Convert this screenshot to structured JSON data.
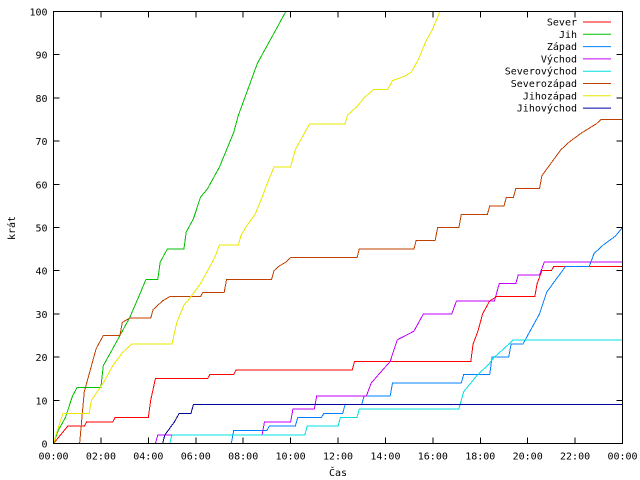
{
  "chart_data": {
    "type": "line",
    "xlabel": "Čas",
    "ylabel": "krát",
    "x_unit": "hours",
    "xlim": [
      0,
      24
    ],
    "ylim": [
      0,
      100
    ],
    "x_tick_values": [
      0,
      2,
      4,
      6,
      8,
      10,
      12,
      14,
      16,
      18,
      20,
      22,
      24
    ],
    "x_tick_labels": [
      "00:00",
      "02:00",
      "04:00",
      "06:00",
      "08:00",
      "10:00",
      "12:00",
      "14:00",
      "16:00",
      "18:00",
      "20:00",
      "22:00",
      "00:00"
    ],
    "y_ticks": [
      0,
      10,
      20,
      30,
      40,
      50,
      60,
      70,
      80,
      90,
      100
    ],
    "grid": false,
    "legend_position": "top-right",
    "series": [
      {
        "name": "Sever",
        "color": "#ff0000",
        "points": [
          [
            0,
            0
          ],
          [
            0.3,
            2
          ],
          [
            0.6,
            4
          ],
          [
            1.3,
            4
          ],
          [
            1.4,
            5
          ],
          [
            2.5,
            5
          ],
          [
            2.6,
            6
          ],
          [
            4,
            6
          ],
          [
            4.1,
            10
          ],
          [
            4.3,
            15
          ],
          [
            6.5,
            15
          ],
          [
            6.6,
            16
          ],
          [
            7.6,
            16
          ],
          [
            7.7,
            17
          ],
          [
            12.6,
            17
          ],
          [
            12.7,
            19
          ],
          [
            17.6,
            19
          ],
          [
            17.7,
            23
          ],
          [
            17.9,
            26
          ],
          [
            18.1,
            30
          ],
          [
            18.4,
            33
          ],
          [
            18.7,
            34
          ],
          [
            20.3,
            34
          ],
          [
            20.4,
            37
          ],
          [
            20.6,
            40
          ],
          [
            21,
            40
          ],
          [
            21.1,
            41
          ],
          [
            24,
            41
          ]
        ]
      },
      {
        "name": "Jih",
        "color": "#00c000",
        "points": [
          [
            0,
            0
          ],
          [
            0.2,
            3
          ],
          [
            0.5,
            6
          ],
          [
            0.8,
            11
          ],
          [
            1,
            13
          ],
          [
            2,
            13
          ],
          [
            2.1,
            18
          ],
          [
            2.5,
            22
          ],
          [
            2.9,
            26
          ],
          [
            3.2,
            29
          ],
          [
            3.6,
            34
          ],
          [
            3.9,
            38
          ],
          [
            4.4,
            38
          ],
          [
            4.5,
            42
          ],
          [
            4.8,
            45
          ],
          [
            5.5,
            45
          ],
          [
            5.6,
            49
          ],
          [
            5.9,
            52
          ],
          [
            6.2,
            57
          ],
          [
            6.5,
            59
          ],
          [
            6.8,
            62
          ],
          [
            7,
            64
          ],
          [
            7.3,
            68
          ],
          [
            7.6,
            72
          ],
          [
            7.8,
            76
          ],
          [
            8.2,
            82
          ],
          [
            8.6,
            88
          ],
          [
            9,
            92
          ],
          [
            9.4,
            96
          ],
          [
            9.8,
            100
          ]
        ]
      },
      {
        "name": "Západ",
        "color": "#0080ff",
        "points": [
          [
            0,
            0
          ],
          [
            7.5,
            0
          ],
          [
            7.6,
            3
          ],
          [
            9,
            3
          ],
          [
            9.1,
            4
          ],
          [
            10.2,
            4
          ],
          [
            10.3,
            6
          ],
          [
            11.3,
            6
          ],
          [
            11.4,
            7
          ],
          [
            12.2,
            7
          ],
          [
            12.3,
            9
          ],
          [
            13,
            9
          ],
          [
            13.1,
            11
          ],
          [
            14.2,
            11
          ],
          [
            14.3,
            14
          ],
          [
            17.2,
            14
          ],
          [
            17.3,
            16
          ],
          [
            18.4,
            16
          ],
          [
            18.5,
            20
          ],
          [
            19.2,
            20
          ],
          [
            19.3,
            23
          ],
          [
            19.8,
            23
          ],
          [
            20.1,
            26
          ],
          [
            20.5,
            30
          ],
          [
            20.8,
            35
          ],
          [
            21.2,
            38
          ],
          [
            21.6,
            41
          ],
          [
            22.6,
            41
          ],
          [
            22.8,
            44
          ],
          [
            23.2,
            46
          ],
          [
            23.7,
            48
          ],
          [
            24,
            50
          ]
        ]
      },
      {
        "name": "Východ",
        "color": "#c000ff",
        "points": [
          [
            0,
            0
          ],
          [
            4.3,
            0
          ],
          [
            4.4,
            2
          ],
          [
            8.8,
            2
          ],
          [
            8.9,
            5
          ],
          [
            10,
            5
          ],
          [
            10.1,
            8
          ],
          [
            11,
            8
          ],
          [
            11.1,
            11
          ],
          [
            13.2,
            11
          ],
          [
            13.4,
            14
          ],
          [
            14.2,
            19
          ],
          [
            14.5,
            24
          ],
          [
            15.2,
            26
          ],
          [
            15.6,
            30
          ],
          [
            16.8,
            30
          ],
          [
            17,
            33
          ],
          [
            18.6,
            33
          ],
          [
            18.8,
            37
          ],
          [
            19.5,
            37
          ],
          [
            19.6,
            39
          ],
          [
            20.5,
            39
          ],
          [
            20.7,
            42
          ],
          [
            24,
            42
          ]
        ]
      },
      {
        "name": "Severovýchod",
        "color": "#00e0e0",
        "points": [
          [
            0,
            0
          ],
          [
            4.9,
            0
          ],
          [
            5,
            2
          ],
          [
            10.6,
            2
          ],
          [
            10.7,
            4
          ],
          [
            12,
            4
          ],
          [
            12.1,
            6
          ],
          [
            12.8,
            6
          ],
          [
            12.9,
            8
          ],
          [
            17.1,
            8
          ],
          [
            17.3,
            12
          ],
          [
            17.6,
            14
          ],
          [
            17.9,
            16
          ],
          [
            18.3,
            18
          ],
          [
            18.6,
            20
          ],
          [
            19,
            22
          ],
          [
            19.4,
            24
          ],
          [
            24,
            24
          ]
        ]
      },
      {
        "name": "Severozápad",
        "color": "#c04000",
        "points": [
          [
            0,
            0
          ],
          [
            1.1,
            0
          ],
          [
            1.3,
            12
          ],
          [
            1.8,
            22
          ],
          [
            2.1,
            25
          ],
          [
            2.8,
            25
          ],
          [
            2.9,
            28
          ],
          [
            3.2,
            29
          ],
          [
            4.1,
            29
          ],
          [
            4.2,
            31
          ],
          [
            4.6,
            33
          ],
          [
            4.9,
            34
          ],
          [
            6.2,
            34
          ],
          [
            6.3,
            35
          ],
          [
            7.2,
            35
          ],
          [
            7.3,
            38
          ],
          [
            9.2,
            38
          ],
          [
            9.3,
            40
          ],
          [
            9.5,
            41
          ],
          [
            9.8,
            42
          ],
          [
            10,
            43
          ],
          [
            12.8,
            43
          ],
          [
            12.9,
            45
          ],
          [
            15.2,
            45
          ],
          [
            15.3,
            47
          ],
          [
            16.1,
            47
          ],
          [
            16.2,
            50
          ],
          [
            17.1,
            50
          ],
          [
            17.2,
            53
          ],
          [
            18.3,
            53
          ],
          [
            18.4,
            55
          ],
          [
            19,
            55
          ],
          [
            19.1,
            57
          ],
          [
            19.4,
            57
          ],
          [
            19.5,
            59
          ],
          [
            20.5,
            59
          ],
          [
            20.6,
            62
          ],
          [
            21,
            65
          ],
          [
            21.4,
            68
          ],
          [
            21.8,
            70
          ],
          [
            22.3,
            72
          ],
          [
            22.9,
            74
          ],
          [
            23.1,
            75
          ],
          [
            24,
            75
          ]
        ]
      },
      {
        "name": "Jihozápad",
        "color": "#e8e800",
        "points": [
          [
            0,
            0
          ],
          [
            0.1,
            2
          ],
          [
            0.4,
            7
          ],
          [
            1.5,
            7
          ],
          [
            1.6,
            10
          ],
          [
            2.1,
            14
          ],
          [
            2.5,
            18
          ],
          [
            2.9,
            21
          ],
          [
            3.3,
            23
          ],
          [
            5,
            23
          ],
          [
            5.2,
            28
          ],
          [
            5.5,
            32
          ],
          [
            5.8,
            34
          ],
          [
            6.2,
            37
          ],
          [
            6.5,
            40
          ],
          [
            6.8,
            43
          ],
          [
            7,
            46
          ],
          [
            7.8,
            46
          ],
          [
            7.9,
            48
          ],
          [
            8.1,
            50
          ],
          [
            8.5,
            53
          ],
          [
            8.8,
            57
          ],
          [
            9,
            60
          ],
          [
            9.3,
            64
          ],
          [
            10,
            64
          ],
          [
            10.2,
            68
          ],
          [
            10.5,
            71
          ],
          [
            10.8,
            74
          ],
          [
            12.3,
            74
          ],
          [
            12.4,
            76
          ],
          [
            12.8,
            78
          ],
          [
            13.1,
            80
          ],
          [
            13.5,
            82
          ],
          [
            14.1,
            82
          ],
          [
            14.3,
            84
          ],
          [
            14.8,
            85
          ],
          [
            15.1,
            86
          ],
          [
            15.4,
            89
          ],
          [
            15.7,
            93
          ],
          [
            16,
            96
          ],
          [
            16.3,
            100
          ]
        ]
      },
      {
        "name": "Jihovýchod",
        "color": "#0000a0",
        "points": [
          [
            0,
            0
          ],
          [
            4.6,
            0
          ],
          [
            4.7,
            2
          ],
          [
            5.1,
            5
          ],
          [
            5.3,
            7
          ],
          [
            5.8,
            7
          ],
          [
            5.9,
            9
          ],
          [
            24,
            9
          ]
        ]
      }
    ]
  }
}
